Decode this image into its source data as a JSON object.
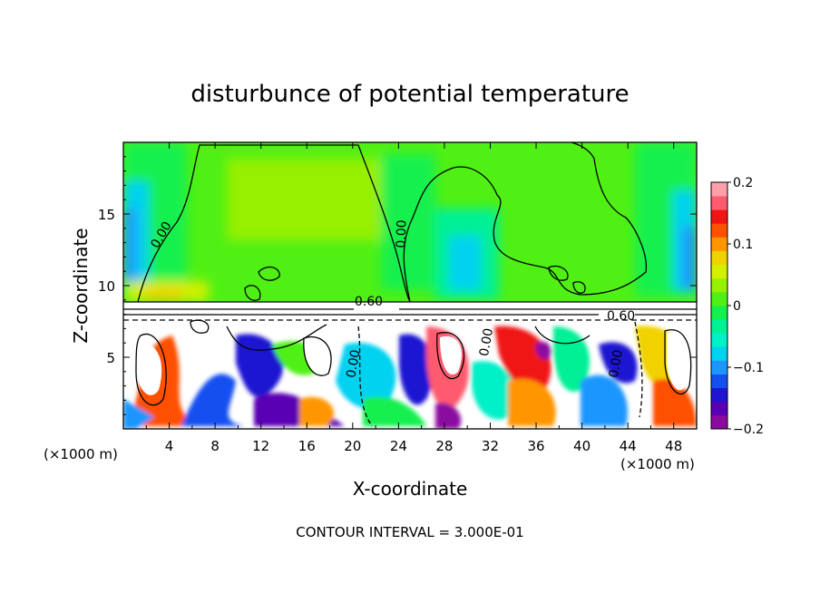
{
  "chart_data": {
    "type": "heatmap",
    "title": "disturbunce of potential temperature",
    "xlabel": "X-coordinate",
    "ylabel": "Z-coordinate",
    "x_unit": "(×1000 m)",
    "z_unit": "(×1000 m)",
    "xlim": [
      0,
      50
    ],
    "ylim": [
      0,
      20
    ],
    "x_ticks": [
      4,
      8,
      12,
      16,
      20,
      24,
      28,
      32,
      36,
      40,
      44,
      48
    ],
    "y_ticks": [
      5,
      10,
      15
    ],
    "colorbar": {
      "range": [
        -0.2,
        0.2
      ],
      "tick_labels": [
        "0.2",
        "0.1",
        "0",
        "−0.1",
        "−0.2"
      ],
      "tick_values": [
        0.2,
        0.1,
        0,
        -0.1,
        -0.2
      ],
      "colors": [
        "#8b0aa0",
        "#5a00b4",
        "#1e14d2",
        "#1450f0",
        "#1e96ff",
        "#00d2f0",
        "#00f0c8",
        "#00f096",
        "#14f050",
        "#50f014",
        "#96f000",
        "#d2f000",
        "#f0d200",
        "#ff9600",
        "#ff5000",
        "#f01414",
        "#ff5a6e",
        "#ffa0a8"
      ]
    },
    "contour_labels": [
      {
        "text": "0.00",
        "x": 3.6,
        "z": 13.4,
        "rotate": -60
      },
      {
        "text": "0.00",
        "x": 24.6,
        "z": 13.6,
        "rotate": -88
      },
      {
        "text": "0.60",
        "x": 21.4,
        "z": 8.6,
        "rotate": 0
      },
      {
        "text": "0.60",
        "x": 43.4,
        "z": 7.6,
        "rotate": 0
      },
      {
        "text": "0.00",
        "x": 20.4,
        "z": 4.5,
        "rotate": -80
      },
      {
        "text": "0.00",
        "x": 32.0,
        "z": 6.0,
        "rotate": -80
      },
      {
        "text": "0.00",
        "x": 43.3,
        "z": 4.5,
        "rotate": -80
      }
    ],
    "footer": "CONTOUR INTERVAL = 3.000E-01"
  }
}
